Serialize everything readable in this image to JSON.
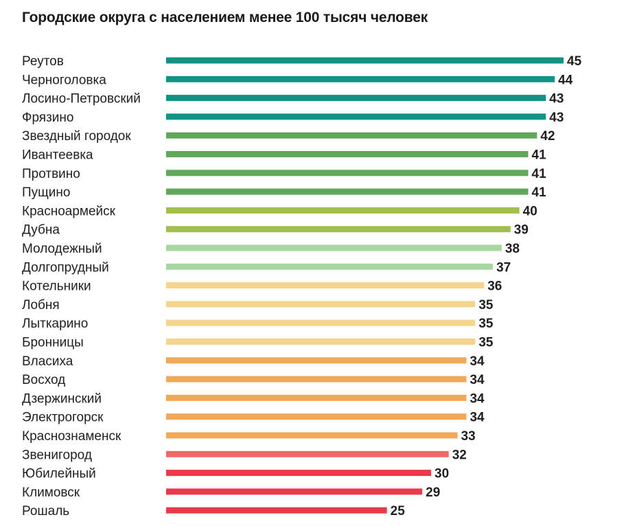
{
  "chart_data": {
    "type": "bar",
    "orientation": "horizontal",
    "title": "Городские округа с населением менее 100 тысяч человек",
    "xlabel": "",
    "ylabel": "",
    "categories": [
      "Реутов",
      "Черноголовка",
      "Лосино-Петровский",
      "Фрязино",
      "Звездный городок",
      "Ивантеевка",
      "Протвино",
      "Пущино",
      "Красноармейск",
      "Дубна",
      "Молодежный",
      "Долгопрудный",
      "Котельники",
      "Лобня",
      "Лыткарино",
      "Бронницы",
      "Власиха",
      "Восход",
      "Дзержинский",
      "Электрогорск",
      "Краснознаменск",
      "Звенигород",
      "Юбилейный",
      "Климовск",
      "Рошаль"
    ],
    "values": [
      45,
      44,
      43,
      43,
      42,
      41,
      41,
      41,
      40,
      39,
      38,
      37,
      36,
      35,
      35,
      35,
      34,
      34,
      34,
      34,
      33,
      32,
      30,
      29,
      25
    ],
    "xlim": [
      0,
      45
    ],
    "grid": false,
    "legend": "none",
    "colors": [
      "#0e9384",
      "#0e9384",
      "#0e9384",
      "#0e9384",
      "#5fa85a",
      "#5fa85a",
      "#5fa85a",
      "#5fa85a",
      "#a2bf4d",
      "#a2bf4d",
      "#a8d6a0",
      "#a8d6a0",
      "#f5d58c",
      "#f5d58c",
      "#f5d58c",
      "#f5d58c",
      "#f2a85a",
      "#f2a85a",
      "#f2a85a",
      "#f2a85a",
      "#f2a85a",
      "#ee6a66",
      "#e83a48",
      "#e83a48",
      "#e83a48"
    ]
  }
}
